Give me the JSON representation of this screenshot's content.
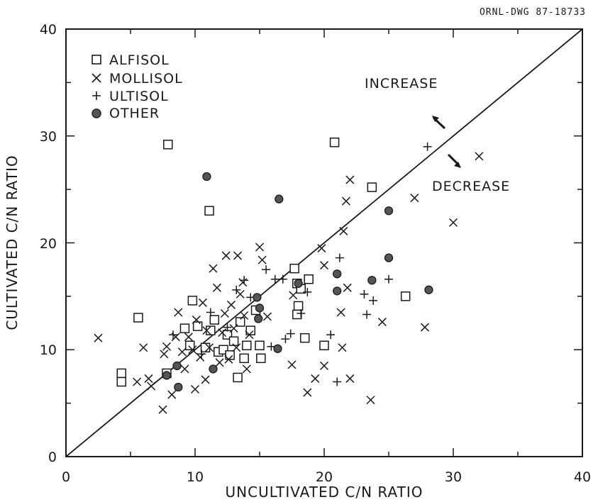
{
  "drawing_id": "ORNL-DWG 87-18733",
  "chart_data": {
    "type": "scatter",
    "xlabel": "UNCULTIVATED C/N RATIO",
    "ylabel": "CULTIVATED C/N RATIO",
    "xlim": [
      0,
      40
    ],
    "ylim": [
      0,
      40
    ],
    "xticks": [
      "0",
      "10",
      "20",
      "30",
      "40"
    ],
    "yticks": [
      "0",
      "10",
      "20",
      "30",
      "40"
    ],
    "reference_line": "y = x",
    "legend_position": "top-left",
    "annotations": {
      "increase": "INCREASE",
      "decrease": "DECREASE"
    },
    "series": [
      {
        "name": "ALFISOL",
        "marker": "square",
        "points": [
          [
            4.3,
            7.8
          ],
          [
            4.3,
            7
          ],
          [
            5.6,
            13
          ],
          [
            7.9,
            29.2
          ],
          [
            7.8,
            7.8
          ],
          [
            9.2,
            12
          ],
          [
            9.6,
            10.4
          ],
          [
            9.8,
            14.6
          ],
          [
            10.2,
            12.2
          ],
          [
            10.8,
            10.2
          ],
          [
            11.1,
            23
          ],
          [
            11.2,
            11.8
          ],
          [
            11.5,
            12.8
          ],
          [
            11.8,
            9.8
          ],
          [
            12.2,
            10
          ],
          [
            12.5,
            11.4
          ],
          [
            12.7,
            9.5
          ],
          [
            13.0,
            10.8
          ],
          [
            13.3,
            7.4
          ],
          [
            13.5,
            12.6
          ],
          [
            13.8,
            9.2
          ],
          [
            14.0,
            10.4
          ],
          [
            14.3,
            11.8
          ],
          [
            14.7,
            13.7
          ],
          [
            15.1,
            9.2
          ],
          [
            15.0,
            10.4
          ],
          [
            17.7,
            17.6
          ],
          [
            17.9,
            16.2
          ],
          [
            18.0,
            14.1
          ],
          [
            18.2,
            15.7
          ],
          [
            18.8,
            16.6
          ],
          [
            18.5,
            11.1
          ],
          [
            17.9,
            13.3
          ],
          [
            20.0,
            10.4
          ],
          [
            20.8,
            29.4
          ],
          [
            23.7,
            25.2
          ],
          [
            26.3,
            15
          ]
        ]
      },
      {
        "name": "MOLLISOL",
        "marker": "x",
        "points": [
          [
            2.5,
            11.1
          ],
          [
            5.5,
            7
          ],
          [
            6.0,
            10.2
          ],
          [
            6.4,
            7.3
          ],
          [
            6.6,
            6.6
          ],
          [
            7.5,
            4.4
          ],
          [
            7.6,
            9.6
          ],
          [
            7.8,
            10.3
          ],
          [
            8.2,
            5.8
          ],
          [
            8.5,
            11.2
          ],
          [
            8.7,
            13.5
          ],
          [
            9.0,
            9.8
          ],
          [
            9.2,
            8.2
          ],
          [
            9.5,
            11.2
          ],
          [
            9.8,
            10
          ],
          [
            10.0,
            6.3
          ],
          [
            10.1,
            12.8
          ],
          [
            10.4,
            9.3
          ],
          [
            10.6,
            14.4
          ],
          [
            10.9,
            11.8
          ],
          [
            10.8,
            7.2
          ],
          [
            11.1,
            10.2
          ],
          [
            11.4,
            17.6
          ],
          [
            11.7,
            15.8
          ],
          [
            11.9,
            8.8
          ],
          [
            12.1,
            11.6
          ],
          [
            12.3,
            13.4
          ],
          [
            12.4,
            18.8
          ],
          [
            12.6,
            9.1
          ],
          [
            12.8,
            14.2
          ],
          [
            13.0,
            12
          ],
          [
            13.2,
            10.2
          ],
          [
            13.3,
            18.8
          ],
          [
            13.5,
            15.2
          ],
          [
            13.7,
            16.3
          ],
          [
            13.8,
            13.2
          ],
          [
            14.0,
            8.2
          ],
          [
            14.2,
            11.4
          ],
          [
            15.0,
            19.6
          ],
          [
            15.2,
            18.4
          ],
          [
            15.6,
            13.1
          ],
          [
            17.5,
            8.6
          ],
          [
            17.6,
            15.1
          ],
          [
            18.7,
            6
          ],
          [
            19.3,
            7.3
          ],
          [
            19.8,
            19.5
          ],
          [
            20.0,
            17.9
          ],
          [
            20.0,
            8.5
          ],
          [
            21.3,
            13.5
          ],
          [
            21.4,
            10.2
          ],
          [
            21.5,
            21.1
          ],
          [
            21.7,
            23.9
          ],
          [
            21.8,
            15.8
          ],
          [
            22.0,
            25.9
          ],
          [
            22.0,
            7.3
          ],
          [
            23.6,
            5.3
          ],
          [
            24.5,
            12.6
          ],
          [
            27.0,
            24.2
          ],
          [
            27.8,
            12.1
          ],
          [
            30.0,
            21.9
          ],
          [
            32.0,
            28.1
          ]
        ]
      },
      {
        "name": "ULTISOL",
        "marker": "plus",
        "points": [
          [
            8.3,
            11.4
          ],
          [
            10.5,
            9.6
          ],
          [
            11.2,
            13.5
          ],
          [
            12.5,
            12.1
          ],
          [
            13.2,
            15.6
          ],
          [
            13.8,
            16.5
          ],
          [
            14.3,
            14.9
          ],
          [
            15.5,
            17.5
          ],
          [
            15.9,
            10.3
          ],
          [
            16.2,
            16.6
          ],
          [
            16.8,
            16.6
          ],
          [
            17.0,
            11
          ],
          [
            17.4,
            11.5
          ],
          [
            18.2,
            13.4
          ],
          [
            18.7,
            15.4
          ],
          [
            20.5,
            11.4
          ],
          [
            21.2,
            18.6
          ],
          [
            21.0,
            7
          ],
          [
            23.1,
            15.2
          ],
          [
            23.3,
            13.3
          ],
          [
            23.8,
            14.6
          ],
          [
            25.0,
            16.6
          ],
          [
            28.0,
            29
          ]
        ]
      },
      {
        "name": "OTHER",
        "marker": "filled-circle",
        "points": [
          [
            7.8,
            7.6
          ],
          [
            8.6,
            8.5
          ],
          [
            8.7,
            6.5
          ],
          [
            10.9,
            26.2
          ],
          [
            11.4,
            8.2
          ],
          [
            14.8,
            14.9
          ],
          [
            14.9,
            12.9
          ],
          [
            15.0,
            13.9
          ],
          [
            16.4,
            10.1
          ],
          [
            16.5,
            24.1
          ],
          [
            18.0,
            16.2
          ],
          [
            21.0,
            17.1
          ],
          [
            21.0,
            15.5
          ],
          [
            23.7,
            16.5
          ],
          [
            25.0,
            23
          ],
          [
            25.0,
            18.6
          ],
          [
            28.1,
            15.6
          ]
        ]
      }
    ]
  }
}
